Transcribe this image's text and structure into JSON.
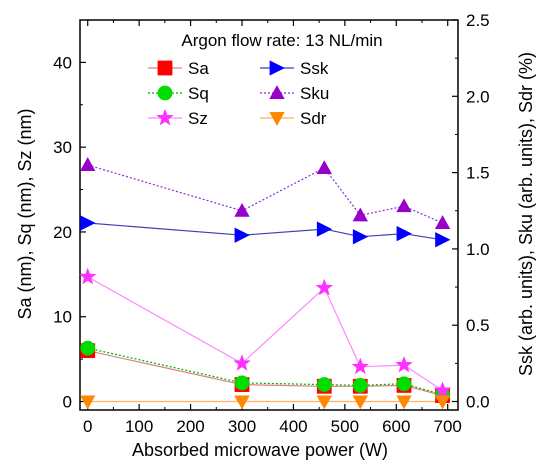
{
  "chart_data": {
    "type": "line",
    "legend_title": "Argon flow rate: 13 NL/min",
    "legend_placement": "top-center",
    "xlabel": "Absorbed microwave power (W)",
    "ylabel_left": "Sa (nm), Sq (nm), Sz (nm)",
    "ylabel_right": "Ssk (arb. units), Sku (arb. units), Sdr (%)",
    "xlim": [
      -15,
      720
    ],
    "ylim_left": [
      -1,
      45
    ],
    "ylim_right": [
      -0.05555,
      2.5
    ],
    "x_ticks": [
      0,
      100,
      200,
      300,
      400,
      500,
      600,
      700
    ],
    "x_tick_labels": [
      "0",
      "100",
      "200",
      "300",
      "400",
      "500",
      "600",
      "700"
    ],
    "y_left_ticks": [
      0,
      10,
      20,
      30,
      40
    ],
    "y_left_tick_labels": [
      "0",
      "10",
      "20",
      "30",
      "40"
    ],
    "y_right_ticks": [
      0,
      0.5,
      1,
      1.5,
      2,
      2.5
    ],
    "y_right_tick_labels": [
      "0.0",
      "0.5",
      "1.0",
      "1.5",
      "2.0",
      "2.5"
    ],
    "x": [
      0,
      300,
      460,
      530,
      615,
      690
    ],
    "series": [
      {
        "name": "Sa",
        "axis": "left",
        "marker": "square",
        "line": "solid",
        "color": "#ff0000",
        "line_color": "#e08080",
        "values": [
          6.0,
          2.0,
          1.8,
          1.8,
          1.9,
          0.7
        ]
      },
      {
        "name": "Sq",
        "axis": "left",
        "marker": "circle",
        "line": "dotted",
        "color": "#00dd00",
        "line_color": "#00aa00",
        "values": [
          6.3,
          2.2,
          2.0,
          1.9,
          2.1,
          0.8
        ]
      },
      {
        "name": "Sz",
        "axis": "left",
        "marker": "star",
        "line": "solid",
        "color": "#ff33ff",
        "line_color": "#ff88ff",
        "values": [
          14.7,
          4.5,
          13.4,
          4.1,
          4.3,
          1.3
        ]
      },
      {
        "name": "Ssk",
        "axis": "right",
        "marker": "triangle-right",
        "line": "solid",
        "color": "#0000ff",
        "line_color": "#4040b0",
        "values": [
          1.17,
          1.09,
          1.13,
          1.08,
          1.1,
          1.06
        ]
      },
      {
        "name": "Sku",
        "axis": "right",
        "marker": "triangle-up",
        "line": "dotted",
        "color": "#9900cc",
        "line_color": "#8a2be2",
        "values": [
          1.55,
          1.25,
          1.53,
          1.22,
          1.28,
          1.17
        ]
      },
      {
        "name": "Sdr",
        "axis": "right",
        "marker": "triangle-down",
        "line": "solid",
        "color": "#ff8800",
        "line_color": "#ffb060",
        "values": [
          0.0,
          0.0,
          0.0,
          0.0,
          0.0,
          0.0
        ]
      }
    ]
  }
}
